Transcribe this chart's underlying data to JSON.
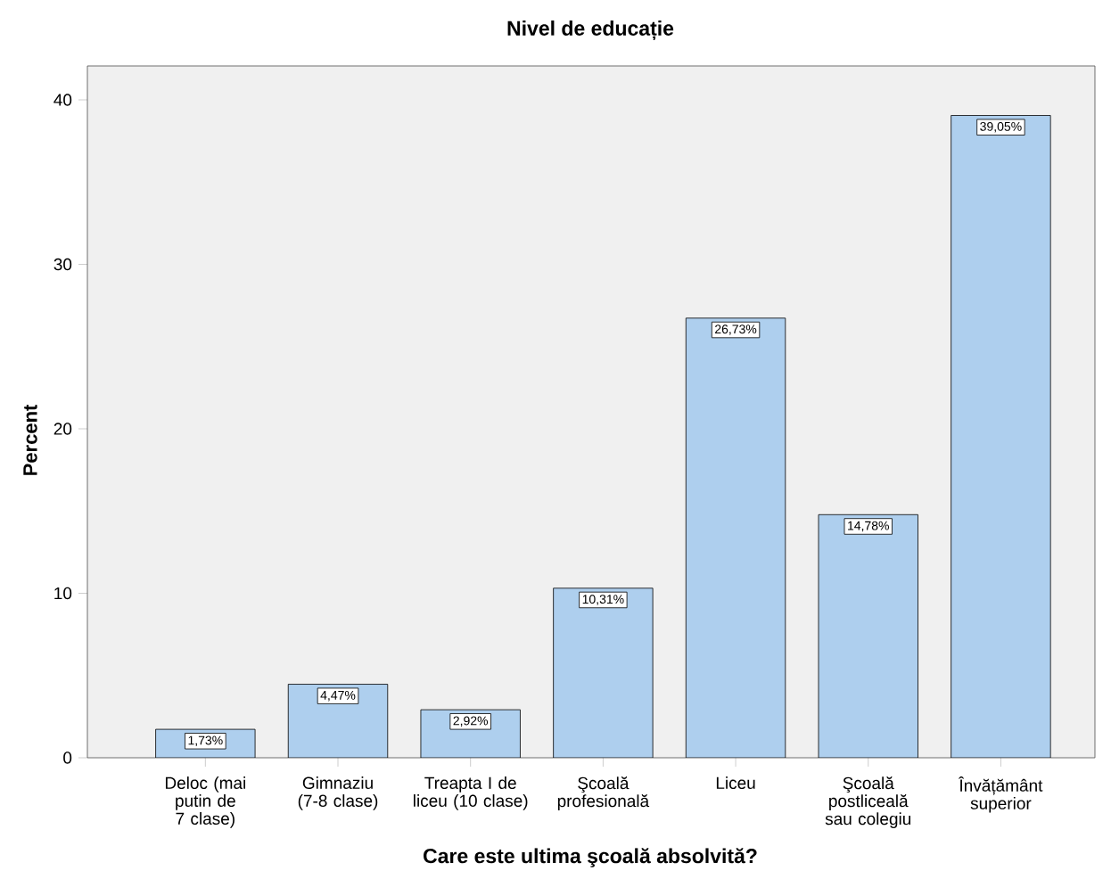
{
  "chart_data": {
    "type": "bar",
    "title": "Nivel de educație",
    "xlabel": "Care este ultima şcoală absolvită?",
    "ylabel": "Percent",
    "categories": [
      "Deloc (mai putin de 7 clase)",
      "Gimnaziu (7-8 clase)",
      "Treapta I de liceu (10 clase)",
      "Şcoală profesională",
      "Liceu",
      "Şcoală postliceală sau colegiu",
      "Învățământ superior"
    ],
    "values": [
      1.73,
      4.47,
      2.92,
      10.31,
      26.73,
      14.78,
      39.05
    ],
    "value_labels": [
      "1,73%",
      "4,47%",
      "2,92%",
      "10,31%",
      "26,73%",
      "14,78%",
      "39,05%"
    ],
    "color": "#aecfee",
    "ylim": [
      0,
      42.06
    ],
    "yticks": [
      0,
      10,
      20,
      30,
      40
    ]
  }
}
